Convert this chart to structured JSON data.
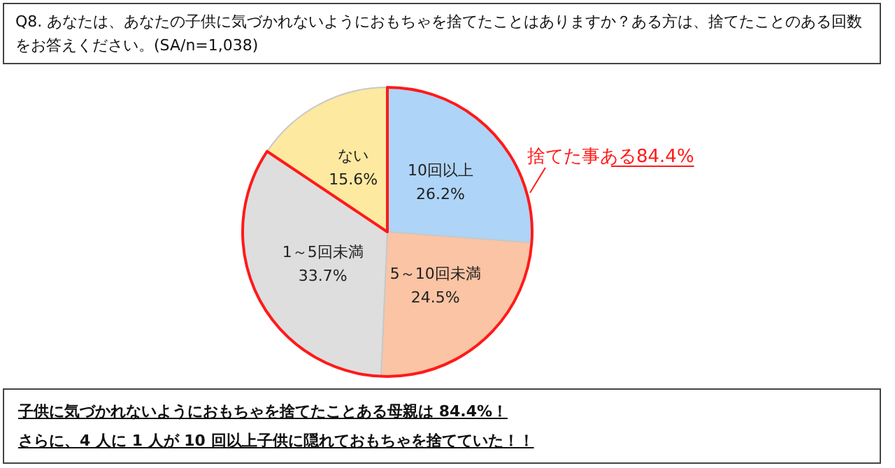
{
  "chart_data": {
    "type": "pie",
    "title": "Q8. あなたは、あなたの子供に気づかれないようにおもちゃを捨てたことはありますか？ある方は、捨てたことのある回数をお答えください。(SA/n=1,038)",
    "categories": [
      "10回以上",
      "5～10回未満",
      "1～5回未満",
      "ない"
    ],
    "values": [
      26.2,
      24.5,
      33.7,
      15.6
    ],
    "value_labels": [
      "26.2%",
      "24.5%",
      "33.7%",
      "15.6%"
    ],
    "colors": [
      "#aed4f7",
      "#fbc4a4",
      "#dedede",
      "#fde9a0"
    ],
    "legend": false,
    "annotations": [
      "捨てた事ある84.4%",
      "子供に気づかれないようにおもちゃを捨てたことある母親は 84.4%！",
      "さらに、4 人に 1 人が 10 回以上子供に隠れておもちゃを捨てていた！！"
    ]
  }
}
